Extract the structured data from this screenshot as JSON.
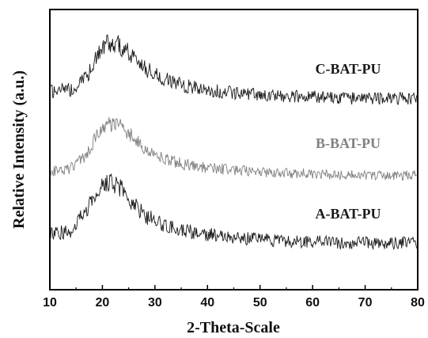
{
  "chart_data": {
    "type": "line",
    "title": "",
    "xlabel": "2-Theta-Scale",
    "ylabel": "Relative Intensity (a.u.)",
    "xlim": [
      10,
      80
    ],
    "x_ticks": [
      "10",
      "20",
      "30",
      "40",
      "50",
      "60",
      "70",
      "80"
    ],
    "y_ticks_labeled": false,
    "grid": false,
    "legend": "none",
    "x": [
      10,
      14,
      17,
      19,
      21,
      23,
      25,
      28,
      32,
      36,
      40,
      45,
      50,
      55,
      60,
      65,
      70,
      75,
      80
    ],
    "series": [
      {
        "name": "C-BAT-PU",
        "color": "#1a1a1a",
        "values": [
          0.8,
          0.9,
          1.6,
          3.0,
          3.6,
          3.5,
          3.0,
          2.1,
          1.5,
          1.1,
          0.9,
          0.7,
          0.6,
          0.5,
          0.5,
          0.4,
          0.4,
          0.4,
          0.4
        ]
      },
      {
        "name": "B-BAT-PU",
        "color": "#808080",
        "values": [
          0.6,
          0.8,
          1.5,
          2.8,
          3.4,
          3.3,
          2.8,
          1.9,
          1.3,
          1.0,
          0.8,
          0.7,
          0.6,
          0.5,
          0.5,
          0.4,
          0.4,
          0.4,
          0.4
        ]
      },
      {
        "name": "A-BAT-PU",
        "color": "#1a1a1a",
        "values": [
          1.0,
          1.2,
          2.4,
          3.6,
          4.0,
          3.8,
          3.1,
          2.1,
          1.5,
          1.2,
          1.0,
          0.8,
          0.7,
          0.6,
          0.6,
          0.5,
          0.5,
          0.5,
          0.5
        ]
      }
    ]
  }
}
